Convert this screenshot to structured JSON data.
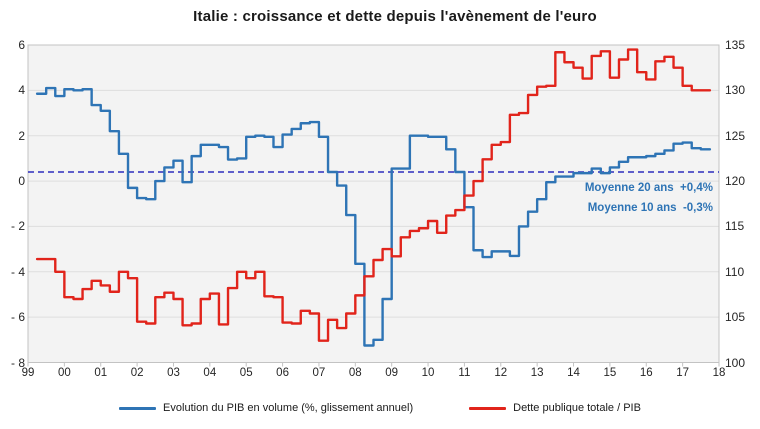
{
  "title": "Italie : croissance et dette depuis l'avènement de l'euro",
  "colors": {
    "gdp_line": "#2e74b5",
    "debt_line": "#e1241b",
    "reference_dashed": "#2d2dbe",
    "annotation_text": "#2e74b5",
    "plot_background": "#f3f3f3",
    "gridline": "#dedede",
    "plot_border": "#c3c3c3"
  },
  "chart_data": {
    "type": "line",
    "title": "Italie : croissance et dette depuis l'avènement de l'euro",
    "x_axis": {
      "range": [
        1999,
        2018
      ],
      "tick_labels": [
        "99",
        "00",
        "01",
        "02",
        "03",
        "04",
        "05",
        "06",
        "07",
        "08",
        "09",
        "10",
        "11",
        "12",
        "13",
        "14",
        "15",
        "16",
        "17",
        "18"
      ]
    },
    "left_axis": {
      "ticks": [
        6,
        4,
        2,
        0,
        -2,
        -4,
        -6,
        -8
      ],
      "tick_labels": [
        "6",
        "4",
        "2",
        "0",
        "- 2",
        "- 4",
        "- 6",
        "- 8"
      ],
      "range": [
        -8,
        6
      ]
    },
    "right_axis": {
      "ticks": [
        135,
        130,
        125,
        120,
        115,
        110,
        105,
        100
      ],
      "tick_labels": [
        "135",
        "130",
        "125",
        "120",
        "115",
        "110",
        "105",
        "100"
      ],
      "range": [
        100,
        135
      ]
    },
    "grid": "horizontal",
    "legend_position": "bottom",
    "reference_line": {
      "axis": "left",
      "value": 0.4,
      "style": "dashed",
      "color": "#2d2dbe"
    },
    "annotations": [
      {
        "text": "Moyenne 20 ans  +0,4%"
      },
      {
        "text": "Moyenne 10 ans  -0,3%"
      }
    ],
    "series": [
      {
        "name": "Evolution du PIB en volume (%, glissement annuel)",
        "axis": "left",
        "color": "#2e74b5",
        "x_start": 1999.25,
        "x_step": 0.25,
        "values": [
          3.85,
          4.1,
          3.75,
          4.05,
          4.0,
          4.05,
          3.35,
          3.1,
          2.2,
          1.2,
          -0.3,
          -0.75,
          -0.8,
          0.0,
          0.6,
          0.9,
          -0.05,
          1.1,
          1.6,
          1.6,
          1.5,
          0.95,
          1.0,
          1.95,
          2.0,
          1.95,
          1.5,
          2.05,
          2.3,
          2.55,
          2.6,
          1.95,
          0.4,
          -0.2,
          -1.5,
          -3.65,
          -7.25,
          -7.0,
          -5.2,
          0.55,
          0.55,
          2.0,
          2.0,
          1.95,
          1.95,
          1.4,
          0.4,
          -1.15,
          -3.05,
          -3.35,
          -3.1,
          -3.1,
          -3.3,
          -2.0,
          -1.35,
          -0.8,
          -0.05,
          0.2,
          0.2,
          0.35,
          0.35,
          0.55,
          0.35,
          0.6,
          0.85,
          1.05,
          1.05,
          1.1,
          1.2,
          1.35,
          1.65,
          1.7,
          1.45,
          1.4
        ]
      },
      {
        "name": "Dette publique totale / PIB",
        "axis": "right",
        "color": "#e1241b",
        "x_start": 1999.25,
        "x_step": 0.25,
        "values": [
          111.4,
          111.4,
          110.0,
          107.2,
          107.0,
          108.1,
          109.0,
          108.5,
          107.8,
          110.0,
          109.3,
          104.5,
          104.3,
          107.2,
          107.7,
          107.0,
          104.1,
          104.3,
          107.0,
          107.6,
          104.2,
          108.2,
          110.0,
          109.3,
          110.0,
          107.3,
          107.2,
          104.4,
          104.3,
          105.7,
          105.4,
          102.4,
          104.7,
          103.8,
          105.4,
          107.4,
          109.5,
          111.3,
          112.5,
          111.7,
          113.8,
          114.5,
          114.8,
          115.6,
          114.3,
          116.2,
          116.8,
          118.4,
          120.0,
          122.4,
          124.0,
          124.3,
          127.3,
          127.5,
          129.5,
          130.4,
          130.5,
          134.2,
          133.1,
          132.5,
          131.3,
          133.8,
          134.3,
          131.4,
          133.4,
          134.5,
          132.0,
          131.2,
          133.2,
          133.7,
          132.5,
          130.5,
          130.0,
          130.0
        ]
      }
    ]
  }
}
